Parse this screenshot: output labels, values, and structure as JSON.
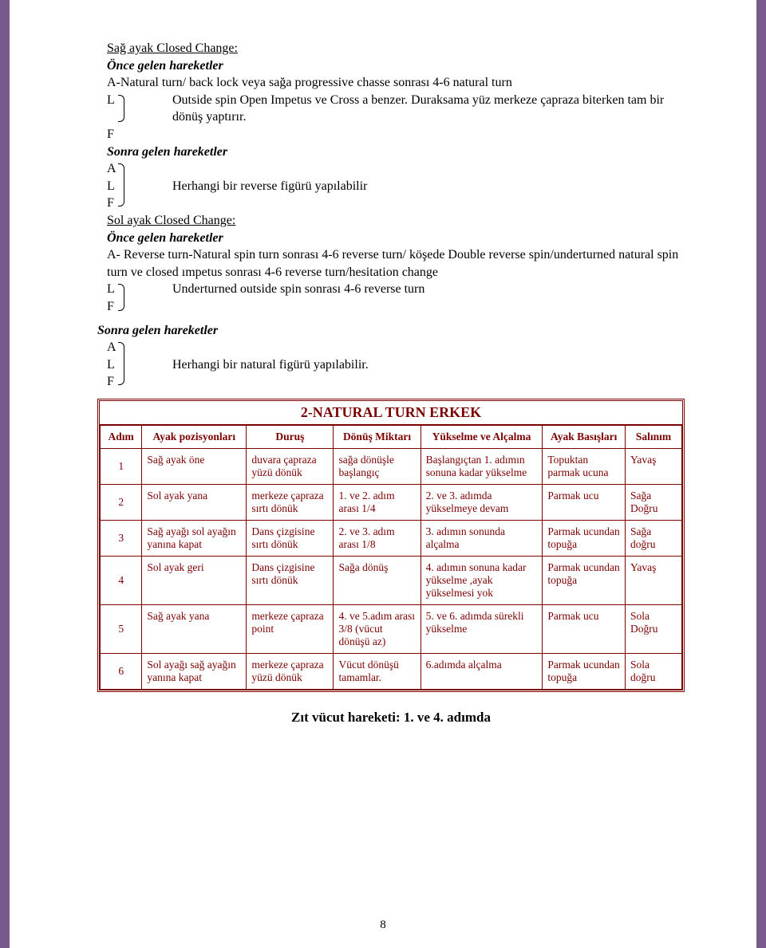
{
  "accent_color": "#7b0000",
  "border_color": "#7a5a8c",
  "sec1": {
    "title": "Sağ ayak Closed Change:",
    "sub1_label": "Önce gelen hareketler",
    "lineA": "A-Natural turn/ back lock veya sağa progressive chasse sonrası 4-6 natural turn",
    "L": "L",
    "F": "F",
    "L_text": "Outside spin Open Impetus ve Cross a benzer. Duraksama yüz merkeze çapraza  biterken tam bir dönüş yaptırır.",
    "sub2_label": "Sonra gelen hareketler",
    "A": "A",
    "L2_text": "Herhangi bir reverse figürü yapılabilir"
  },
  "sec2": {
    "title": "Sol ayak Closed Change:",
    "sub1_label": "Önce gelen hareketler",
    "lineA": "A- Reverse turn-Natural spin turn sonrası 4-6 reverse turn/ köşede Double reverse spin/underturned natural spin turn ve closed ımpetus sonrası 4-6 reverse turn/hesitation change",
    "L": "L",
    "F": "F",
    "L_text": "Underturned outside spin sonrası 4-6 reverse turn"
  },
  "sec3": {
    "label": "Sonra gelen hareketler",
    "A": "A",
    "L": "L",
    "F": "F",
    "L_text": "Herhangi bir natural figürü yapılabilir."
  },
  "table": {
    "title": "2-NATURAL TURN ERKEK",
    "headers": [
      "Adım",
      "Ayak pozisyonları",
      "Duruş",
      "Dönüş Miktarı",
      "Yükselme ve Alçalma",
      "Ayak Basışları",
      "Salınım"
    ],
    "rows": [
      {
        "c0": "1",
        "c1": "Sağ ayak öne",
        "c2": "duvara çapraza yüzü dönük",
        "c3": "sağa dönüşle başlangıç",
        "c4": "Başlangıçtan 1. adımın sonuna kadar yükselme",
        "c5": "Topuktan parmak ucuna",
        "c6": "Yavaş"
      },
      {
        "c0": "2",
        "c1": "Sol ayak yana",
        "c2": "merkeze çapraza sırtı dönük",
        "c3": "1. ve 2. adım arası 1/4",
        "c4": "2. ve 3. adımda yükselmeye devam",
        "c5": "Parmak ucu",
        "c6": "Sağa Doğru"
      },
      {
        "c0": "3",
        "c1": "Sağ ayağı sol ayağın yanına kapat",
        "c2": "Dans çizgisine sırtı dönük",
        "c3": "2. ve 3. adım arası 1/8",
        "c4": "3. adımın sonunda alçalma",
        "c5": "Parmak ucundan topuğa",
        "c6": "Sağa doğru"
      },
      {
        "c0": "4",
        "c1": "Sol ayak geri",
        "c2": "Dans çizgisine sırtı dönük",
        "c3": "Sağa dönüş",
        "c4": "4. adımın sonuna kadar yükselme ,ayak yükselmesi yok",
        "c5": "Parmak ucundan topuğa",
        "c6": "Yavaş"
      },
      {
        "c0": "5",
        "c1": "Sağ ayak yana",
        "c2": "merkeze çapraza point",
        "c3": "4. ve 5.adım arası 3/8 (vücut dönüşü az)",
        "c4": "5. ve 6. adımda sürekli yükselme",
        "c5": "Parmak ucu",
        "c6": "Sola Doğru"
      },
      {
        "c0": "6",
        "c1": "Sol ayağı sağ ayağın yanına kapat",
        "c2": "merkeze çapraza yüzü dönük",
        "c3": "Vücut dönüşü tamamlar.",
        "c4": "6.adımda alçalma",
        "c5": "Parmak ucundan topuğa",
        "c6": "Sola doğru"
      }
    ]
  },
  "footer_line": "Zıt vücut hareketi: 1. ve 4. adımda",
  "page_number": "8"
}
